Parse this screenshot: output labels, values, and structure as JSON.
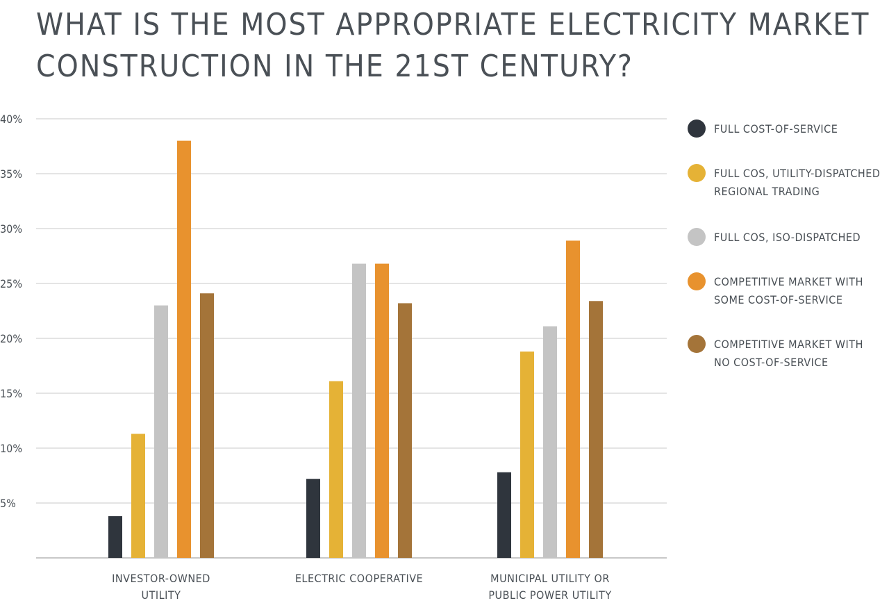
{
  "title_lines": [
    "WHAT IS THE MOST APPROPRIATE ELECTRICITY MARKET",
    "CONSTRUCTION IN THE 21ST CENTURY?"
  ],
  "chart_data": {
    "type": "bar",
    "title": "WHAT IS THE MOST APPROPRIATE ELECTRICITY MARKET CONSTRUCTION IN THE 21ST CENTURY?",
    "xlabel": "",
    "ylabel": "",
    "ylim": [
      0,
      40
    ],
    "grid": true,
    "legend_position": "right",
    "yticks": [
      {
        "value": 5,
        "label": "5%"
      },
      {
        "value": 10,
        "label": "10%"
      },
      {
        "value": 15,
        "label": "15%"
      },
      {
        "value": 20,
        "label": "20%"
      },
      {
        "value": 25,
        "label": "25%"
      },
      {
        "value": 30,
        "label": "30%"
      },
      {
        "value": 35,
        "label": "35%"
      },
      {
        "value": 40,
        "label": "40%"
      }
    ],
    "categories": [
      {
        "lines": [
          "INVESTOR-OWNED",
          "UTILITY"
        ]
      },
      {
        "lines": [
          "ELECTRIC COOPERATIVE"
        ]
      },
      {
        "lines": [
          "MUNICIPAL UTILITY OR",
          "PUBLIC POWER UTILITY"
        ]
      }
    ],
    "series": [
      {
        "name": "FULL COST-OF-SERVICE",
        "name_lines": [
          "FULL COST-OF-SERVICE"
        ],
        "color": "#2f353d",
        "values": [
          3.8,
          7.2,
          7.8
        ]
      },
      {
        "name": "FULL COS, UTILITY-DISPATCHED REGIONAL TRADING",
        "name_lines": [
          "FULL COS, UTILITY-DISPATCHED",
          "REGIONAL TRADING"
        ],
        "color": "#e5b236",
        "values": [
          11.3,
          16.1,
          18.8
        ]
      },
      {
        "name": "FULL COS, ISO-DISPATCHED",
        "name_lines": [
          "FULL COS, ISO-DISPATCHED"
        ],
        "color": "#c4c4c4",
        "values": [
          23.0,
          26.8,
          21.1
        ]
      },
      {
        "name": "COMPETITIVE MARKET WITH SOME COST-OF-SERVICE",
        "name_lines": [
          "COMPETITIVE MARKET WITH",
          "SOME COST-OF-SERVICE"
        ],
        "color": "#e8922e",
        "values": [
          38.0,
          26.8,
          28.9
        ]
      },
      {
        "name": "COMPETITIVE MARKET WITH NO COST-OF-SERVICE",
        "name_lines": [
          "COMPETITIVE MARKET WITH",
          "NO COST-OF-SERVICE"
        ],
        "color": "#a47439",
        "values": [
          24.1,
          23.2,
          23.4
        ]
      }
    ]
  }
}
